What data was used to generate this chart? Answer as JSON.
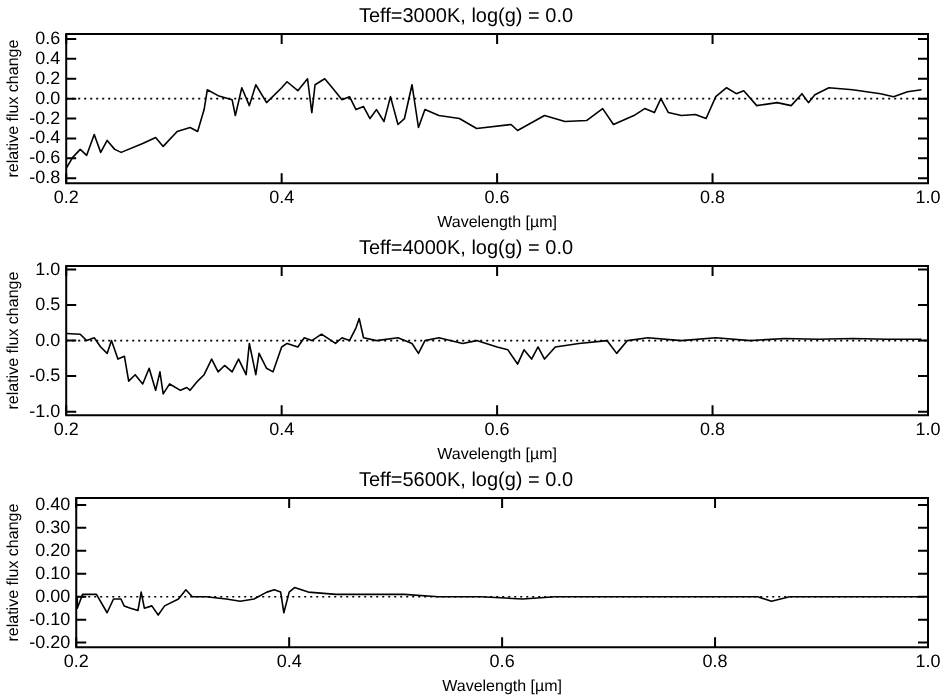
{
  "chart_data": [
    {
      "type": "line",
      "title": "Teff=3000K, log(g) = 0.0",
      "xlabel": "Wavelength [µm]",
      "ylabel": "relative flux change",
      "marker": "none",
      "grid": false,
      "color": "#000000",
      "x": [
        0.2,
        0.206,
        0.213,
        0.219,
        0.226,
        0.232,
        0.238,
        0.245,
        0.251,
        0.271,
        0.283,
        0.29,
        0.303,
        0.315,
        0.322,
        0.328,
        0.331,
        0.341,
        0.354,
        0.357,
        0.363,
        0.37,
        0.376,
        0.386,
        0.4,
        0.405,
        0.415,
        0.424,
        0.428,
        0.431,
        0.44,
        0.447,
        0.456,
        0.463,
        0.469,
        0.476,
        0.482,
        0.488,
        0.495,
        0.501,
        0.508,
        0.514,
        0.521,
        0.527,
        0.533,
        0.546,
        0.565,
        0.581,
        0.613,
        0.619,
        0.644,
        0.663,
        0.683,
        0.698,
        0.708,
        0.727,
        0.737,
        0.746,
        0.752,
        0.759,
        0.771,
        0.784,
        0.794,
        0.803,
        0.813,
        0.822,
        0.829,
        0.841,
        0.86,
        0.873,
        0.883,
        0.889,
        0.895,
        0.908,
        0.93,
        0.956,
        0.968,
        0.981,
        0.994
      ],
      "values": [
        -0.7,
        -0.59,
        -0.51,
        -0.57,
        -0.36,
        -0.54,
        -0.42,
        -0.51,
        -0.54,
        -0.45,
        -0.39,
        -0.48,
        -0.33,
        -0.29,
        -0.33,
        -0.11,
        0.09,
        0.03,
        -0.01,
        -0.17,
        0.11,
        -0.07,
        0.14,
        -0.04,
        0.11,
        0.17,
        0.08,
        0.2,
        -0.14,
        0.14,
        0.2,
        0.11,
        -0.01,
        0.02,
        -0.11,
        -0.08,
        -0.2,
        -0.11,
        -0.23,
        0.02,
        -0.26,
        -0.2,
        0.14,
        -0.29,
        -0.11,
        -0.17,
        -0.2,
        -0.3,
        -0.26,
        -0.32,
        -0.17,
        -0.23,
        -0.22,
        -0.1,
        -0.26,
        -0.17,
        -0.1,
        -0.14,
        0.0,
        -0.14,
        -0.17,
        -0.16,
        -0.2,
        0.02,
        0.11,
        0.05,
        0.08,
        -0.07,
        -0.04,
        -0.07,
        0.05,
        -0.04,
        0.04,
        0.11,
        0.09,
        0.05,
        0.02,
        0.07,
        0.09
      ],
      "xlim": [
        0.2,
        1.0
      ],
      "xticks": [
        {
          "value": 0.2,
          "label": "0.2"
        },
        {
          "value": 0.4,
          "label": "0.4"
        },
        {
          "value": 0.6,
          "label": "0.6"
        },
        {
          "value": 0.8,
          "label": "0.8"
        },
        {
          "value": 1.0,
          "label": "1.0"
        }
      ],
      "ylim": [
        -0.85,
        0.65
      ],
      "yticks": [
        {
          "value": -0.8,
          "label": "-0.8"
        },
        {
          "value": -0.6,
          "label": "-0.6"
        },
        {
          "value": -0.4,
          "label": "-0.4"
        },
        {
          "value": -0.2,
          "label": "-0.2"
        },
        {
          "value": 0,
          "label": "0.0"
        },
        {
          "value": 0.2,
          "label": "0.2"
        },
        {
          "value": 0.4,
          "label": "0.4"
        },
        {
          "value": 0.6,
          "label": "0.6"
        }
      ],
      "ref_lines": [
        {
          "axis": "y",
          "value": 0,
          "line_style": "dotted",
          "color": "#000000"
        }
      ]
    },
    {
      "type": "line",
      "title": "Teff=4000K, log(g) = 0.0",
      "xlabel": "Wavelength [µm]",
      "ylabel": "relative flux change",
      "marker": "none",
      "grid": false,
      "color": "#000000",
      "x": [
        0.2,
        0.213,
        0.219,
        0.226,
        0.232,
        0.238,
        0.242,
        0.248,
        0.254,
        0.258,
        0.264,
        0.271,
        0.277,
        0.283,
        0.287,
        0.29,
        0.296,
        0.306,
        0.312,
        0.315,
        0.322,
        0.328,
        0.335,
        0.341,
        0.347,
        0.354,
        0.36,
        0.367,
        0.37,
        0.376,
        0.379,
        0.386,
        0.392,
        0.4,
        0.405,
        0.415,
        0.421,
        0.428,
        0.437,
        0.45,
        0.456,
        0.463,
        0.469,
        0.472,
        0.476,
        0.488,
        0.508,
        0.521,
        0.527,
        0.533,
        0.546,
        0.568,
        0.581,
        0.6,
        0.61,
        0.619,
        0.625,
        0.632,
        0.638,
        0.644,
        0.654,
        0.676,
        0.702,
        0.711,
        0.721,
        0.74,
        0.771,
        0.803,
        0.835,
        0.867,
        0.898,
        0.93,
        0.962,
        0.994
      ],
      "values": [
        0.1,
        0.09,
        0,
        0.04,
        -0.09,
        -0.18,
        0,
        -0.26,
        -0.22,
        -0.57,
        -0.48,
        -0.61,
        -0.39,
        -0.7,
        -0.44,
        -0.75,
        -0.61,
        -0.7,
        -0.66,
        -0.7,
        -0.57,
        -0.48,
        -0.26,
        -0.44,
        -0.35,
        -0.44,
        -0.26,
        -0.48,
        -0.04,
        -0.48,
        -0.18,
        -0.39,
        -0.44,
        -0.09,
        -0.04,
        -0.09,
        0.04,
        0,
        0.09,
        -0.04,
        0.04,
        0,
        0.18,
        0.31,
        0.04,
        0,
        0.04,
        -0.04,
        -0.18,
        0,
        0.04,
        -0.04,
        0,
        -0.09,
        -0.13,
        -0.33,
        -0.13,
        -0.26,
        -0.09,
        -0.26,
        -0.09,
        -0.04,
        0,
        -0.18,
        0,
        0.04,
        0,
        0.04,
        0,
        0.03,
        0.02,
        0.03,
        0.02,
        0.02
      ],
      "xlim": [
        0.2,
        1.0
      ],
      "xticks": [
        {
          "value": 0.2,
          "label": "0.2"
        },
        {
          "value": 0.4,
          "label": "0.4"
        },
        {
          "value": 0.6,
          "label": "0.6"
        },
        {
          "value": 0.8,
          "label": "0.8"
        },
        {
          "value": 1.0,
          "label": "1.0"
        }
      ],
      "ylim": [
        -1.05,
        1.05
      ],
      "yticks": [
        {
          "value": -1,
          "label": "-1.0"
        },
        {
          "value": -0.5,
          "label": "-0.5"
        },
        {
          "value": 0,
          "label": "0.0"
        },
        {
          "value": 0.5,
          "label": "0.5"
        },
        {
          "value": 1,
          "label": "1.0"
        }
      ],
      "ref_lines": [
        {
          "axis": "y",
          "value": 0,
          "line_style": "dotted",
          "color": "#000000"
        }
      ]
    },
    {
      "type": "line",
      "title": "Teff=5600K, log(g) = 0.0",
      "xlabel": "Wavelength [µm]",
      "ylabel": "relative flux change",
      "marker": "none",
      "grid": false,
      "color": "#000000",
      "x": [
        0.2,
        0.201,
        0.206,
        0.219,
        0.229,
        0.235,
        0.242,
        0.245,
        0.251,
        0.258,
        0.261,
        0.264,
        0.271,
        0.277,
        0.283,
        0.296,
        0.303,
        0.309,
        0.322,
        0.341,
        0.354,
        0.367,
        0.379,
        0.386,
        0.392,
        0.395,
        0.4,
        0.405,
        0.418,
        0.444,
        0.476,
        0.508,
        0.54,
        0.58,
        0.619,
        0.65,
        0.7,
        0.75,
        0.8,
        0.84,
        0.853,
        0.87,
        0.9,
        0.95,
        0.994
      ],
      "values": [
        0,
        -0.05,
        0.01,
        0.01,
        -0.07,
        -0.01,
        -0.01,
        -0.04,
        -0.05,
        -0.06,
        0.02,
        -0.05,
        -0.04,
        -0.08,
        -0.04,
        -0.01,
        0.03,
        0,
        0,
        -0.01,
        -0.02,
        -0.01,
        0.02,
        0.03,
        0.02,
        -0.07,
        0.02,
        0.04,
        0.02,
        0.01,
        0.01,
        0.01,
        0,
        0,
        -0.01,
        0,
        0,
        0,
        0,
        0,
        -0.02,
        0,
        0,
        0,
        0
      ],
      "xlim": [
        0.2,
        1.0
      ],
      "xticks": [
        {
          "value": 0.2,
          "label": "0.2"
        },
        {
          "value": 0.4,
          "label": "0.4"
        },
        {
          "value": 0.6,
          "label": "0.6"
        },
        {
          "value": 0.8,
          "label": "0.8"
        },
        {
          "value": 1.0,
          "label": "1.0"
        }
      ],
      "ylim": [
        -0.22,
        0.43
      ],
      "yticks": [
        {
          "value": -0.2,
          "label": "-0.20"
        },
        {
          "value": -0.1,
          "label": "-0.10"
        },
        {
          "value": 0,
          "label": "0.00"
        },
        {
          "value": 0.1,
          "label": "0.10"
        },
        {
          "value": 0.2,
          "label": "0.20"
        },
        {
          "value": 0.3,
          "label": "0.30"
        },
        {
          "value": 0.4,
          "label": "0.40"
        }
      ],
      "ref_lines": [
        {
          "axis": "y",
          "value": 0,
          "line_style": "dotted",
          "color": "#000000"
        }
      ]
    }
  ]
}
